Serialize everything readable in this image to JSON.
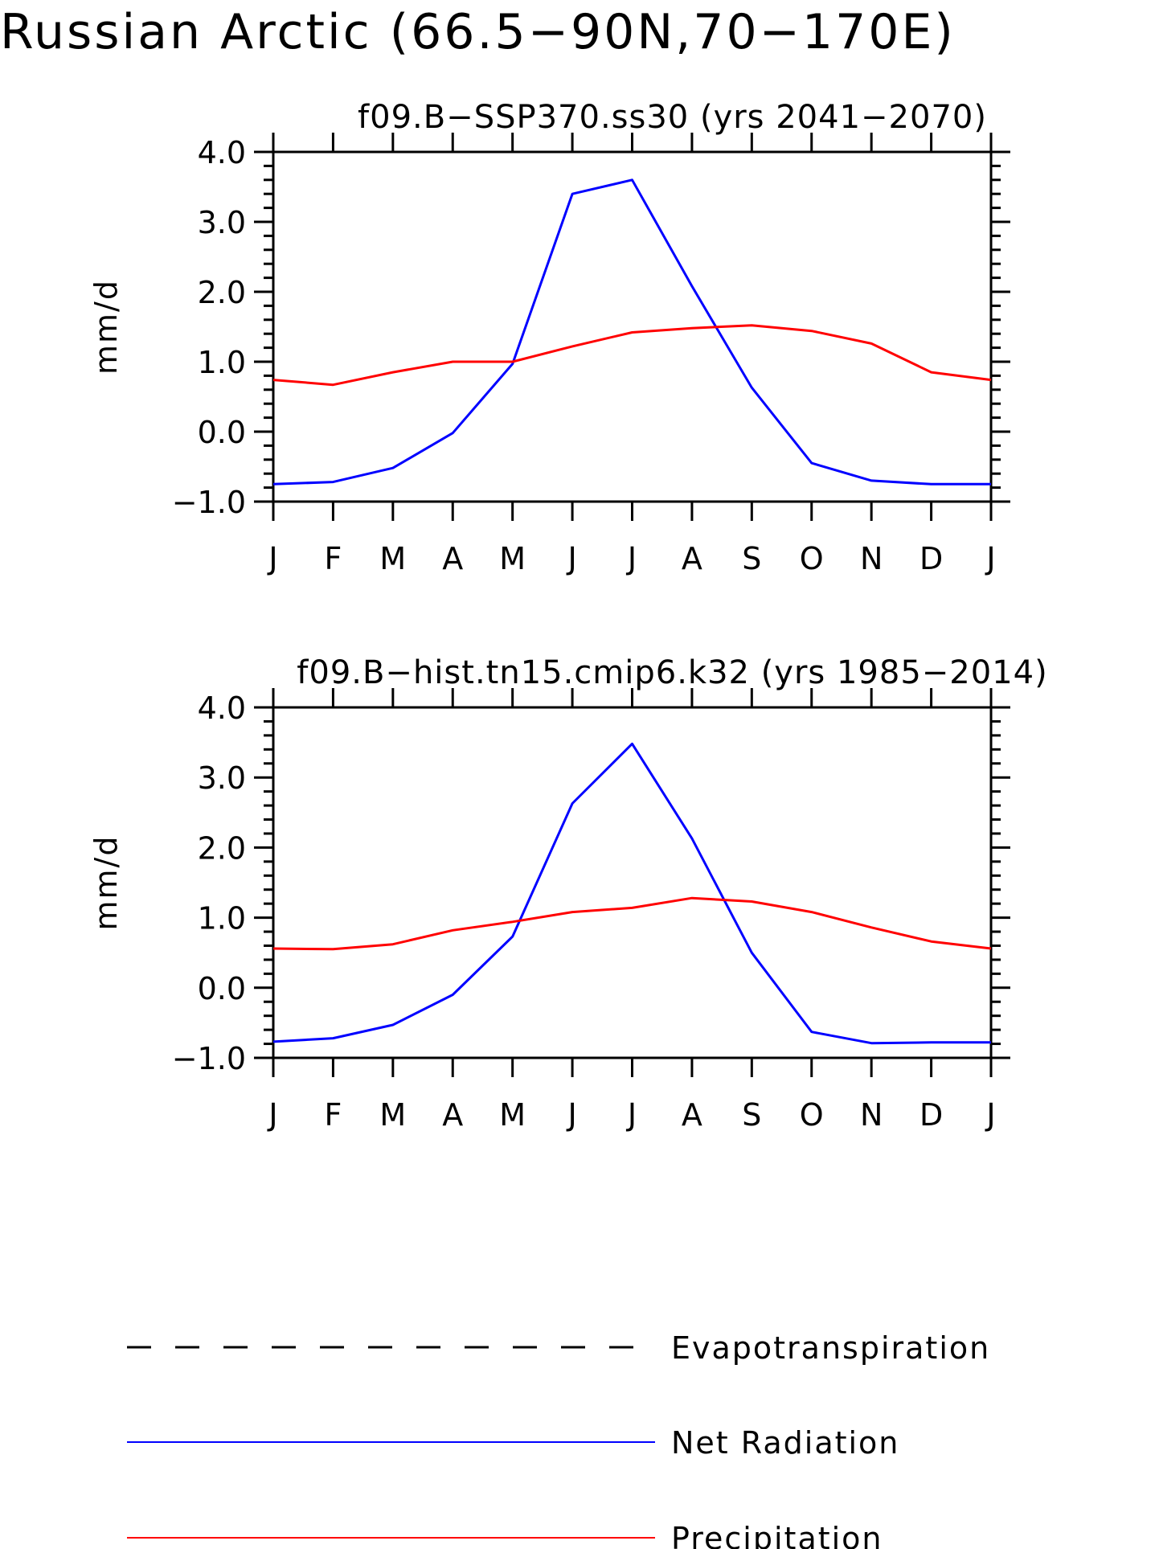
{
  "title": "Russian Arctic (66.5−90N,70−170E)",
  "colors": {
    "Evapotranspiration": "#000000",
    "Net Radiation": "#0000ff",
    "Precipitation": "#ff0000"
  },
  "legend": [
    {
      "label": "Evapotranspiration",
      "style": "dashed",
      "color": "#000000"
    },
    {
      "label": "Net Radiation",
      "style": "solid",
      "color": "#0000ff"
    },
    {
      "label": "Precipitation",
      "style": "solid",
      "color": "#ff0000"
    }
  ],
  "chart_data": [
    {
      "type": "line",
      "title": "f09.B−SSP370.ss30 (yrs 2041−2070)",
      "xlabel": "",
      "ylabel": "mm/d",
      "categories": [
        "J",
        "F",
        "M",
        "A",
        "M",
        "J",
        "J",
        "A",
        "S",
        "O",
        "N",
        "D",
        "J"
      ],
      "yticks": [
        "4.0",
        "3.0",
        "2.0",
        "1.0",
        "0.0",
        "−1.0"
      ],
      "ylim": [
        -1.0,
        4.0
      ],
      "grid": false,
      "series": [
        {
          "name": "Net Radiation",
          "color": "#0000ff",
          "values": [
            -0.75,
            -0.72,
            -0.52,
            -0.02,
            0.97,
            3.4,
            3.6,
            2.08,
            0.63,
            -0.45,
            -0.7,
            -0.75,
            -0.75
          ]
        },
        {
          "name": "Precipitation",
          "color": "#ff0000",
          "values": [
            0.74,
            0.67,
            0.85,
            1.0,
            1.0,
            1.22,
            1.42,
            1.48,
            1.52,
            1.44,
            1.26,
            0.85,
            0.74
          ]
        }
      ]
    },
    {
      "type": "line",
      "title": "f09.B−hist.tn15.cmip6.k32 (yrs 1985−2014)",
      "xlabel": "",
      "ylabel": "mm/d",
      "categories": [
        "J",
        "F",
        "M",
        "A",
        "M",
        "J",
        "J",
        "A",
        "S",
        "O",
        "N",
        "D",
        "J"
      ],
      "yticks": [
        "4.0",
        "3.0",
        "2.0",
        "1.0",
        "0.0",
        "−1.0"
      ],
      "ylim": [
        -1.0,
        4.0
      ],
      "grid": false,
      "series": [
        {
          "name": "Net Radiation",
          "color": "#0000ff",
          "values": [
            -0.77,
            -0.72,
            -0.53,
            -0.1,
            0.73,
            2.63,
            3.48,
            2.13,
            0.5,
            -0.63,
            -0.79,
            -0.78,
            -0.78
          ]
        },
        {
          "name": "Precipitation",
          "color": "#ff0000",
          "values": [
            0.56,
            0.55,
            0.62,
            0.82,
            0.94,
            1.08,
            1.14,
            1.28,
            1.23,
            1.08,
            0.86,
            0.66,
            0.56
          ]
        }
      ]
    }
  ]
}
